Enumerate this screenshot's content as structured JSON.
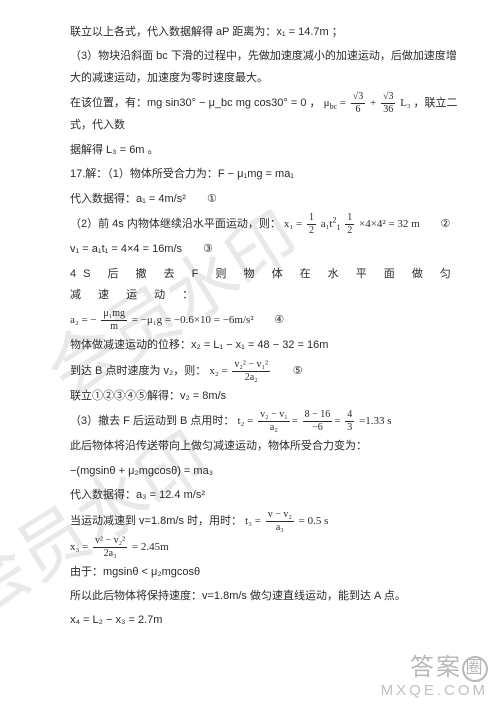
{
  "watermark_text": "会员水印",
  "footer": {
    "logo_left": "答案",
    "logo_ring": "圈",
    "url": "MXQE.COM"
  },
  "lines": {
    "l1": "联立以上各式，代入数据解得 aP 距离为：x₁ = 14.7m ；",
    "l2": "（3）物块沿斜面 bc 下滑的过程中，先做加速度减小的加速运动，后做加速度增大的减速运动，加速度为零时速度最大。",
    "l3a": "在该位置，有：mg sin30° − μ_bc mg cos30° = 0 ，",
    "l3b": " ，联立二式，代入数",
    "l4": "据解得 L₃ = 6m 。",
    "l5": "17.解：（1）物体所受合力为：F − μ₁mg = ma₁",
    "l6": "代入数据得：a₁ = 4m/s²",
    "l6c": "①",
    "l7a": "（2）前 4s 内物体继续沿水平面运动，则：",
    "l7c": "②",
    "l8": "v₁ = a₁t₁ = 4×4 = 16m/s",
    "l8c": "③",
    "l9": "4S 后 撤 去 F 则 物 体 在 水 平 面 做 匀 减 速 运 动 ：",
    "l10c": "④",
    "l11": "物体做减速运动的位移：x₂ = L₁ − x₁ = 48 − 32 = 16m",
    "l12a": "到达 B 点时速度为 v₂，则：",
    "l12c": "⑤",
    "l13": "联立①②③④⑤解得：v₂ = 8m/s",
    "l14a": "（3）撤去 F 后运动到 B 点用时：",
    "l15": "此后物体将沿传送带向上做匀减速运动，物体所受合力变为：",
    "l16": "−(mgsinθ + μ₂mgcosθ) = ma₃",
    "l17": "代入数据得：a₃ = 12.4 m/s²",
    "l18a": "当运动减速到 v=1.8m/s 时，用时：",
    "l19": "由于：mgsinθ < μ₂mgcosθ",
    "l20": "所以此后物体将保持速度：v=1.8m/s 做匀速直线运动，能到达 A 点。",
    "l21": "x₄ = L₂ − x₃ = 2.7m"
  },
  "formulas": {
    "mu_bc": {
      "t1n": "√3",
      "t1d": "6",
      "t2n": "√3",
      "t2d": "36",
      "tail": "L₃"
    },
    "x1": {
      "lead": "x₁ =",
      "t1n": "1",
      "t1d": "2",
      "mid1": "a₁t",
      "t2n": "1",
      "t2d": "2",
      "suffix": "×4×4² = 32  m"
    },
    "a2": {
      "lead": "a₂ = −",
      "num": "μ₁mg",
      "den": "m",
      "suffix": "= −μ₁g = −0.6×10 = −6m/s²"
    },
    "x2eq": {
      "lead": "x₂ =",
      "num": "v₂² − v₁²",
      "den": "2a₂"
    },
    "t2": {
      "lead": "t₂ =",
      "num1": "v₂ − v₁",
      "den1": "a₂",
      "num2": "8 − 16",
      "den2": "−6",
      "num3": "4",
      "den3": "3",
      "suffix": "=1.33  s"
    },
    "t3": {
      "lead": "t₃ =",
      "num": "v − v₂",
      "den": "a₃",
      "suffix": "= 0.5  s"
    },
    "x3": {
      "lead": "x₃ =",
      "num": "v² − v₂²",
      "den": "2a₃",
      "suffix": "= 2.45m"
    }
  },
  "colors": {
    "text": "#2a2a2a",
    "watermark": "#e9e9e9",
    "footer": "#b8b8b8",
    "bg": "#ffffff"
  }
}
